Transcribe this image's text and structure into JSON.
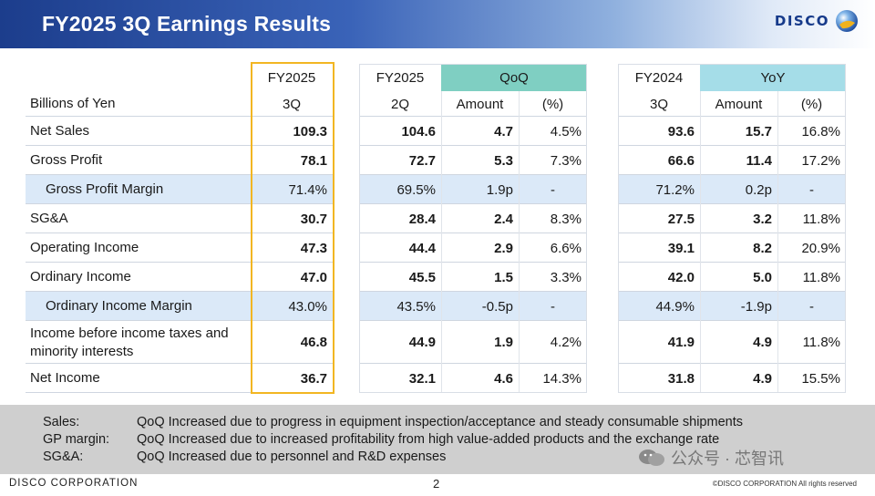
{
  "header": {
    "title": "FY2025 3Q Earnings Results",
    "logo_text": "DISCO"
  },
  "table": {
    "unit_label": "Billions of Yen",
    "current": {
      "line1": "FY2025",
      "line2": "3Q"
    },
    "prev_q": {
      "line1": "FY2025",
      "line2": "2Q"
    },
    "qoq": {
      "title": "QoQ",
      "amount": "Amount",
      "pct": "(%)"
    },
    "prev_y": {
      "line1": "FY2024",
      "line2": "3Q"
    },
    "yoy": {
      "title": "YoY",
      "amount": "Amount",
      "pct": "(%)"
    },
    "rows": [
      {
        "label": "Net Sales",
        "cur": "109.3",
        "q2": "104.6",
        "qoq_amt": "4.7",
        "qoq_pct": "4.5%",
        "py": "93.6",
        "yoy_amt": "15.7",
        "yoy_pct": "16.8%"
      },
      {
        "label": "Gross Profit",
        "cur": "78.1",
        "q2": "72.7",
        "qoq_amt": "5.3",
        "qoq_pct": "7.3%",
        "py": "66.6",
        "yoy_amt": "11.4",
        "yoy_pct": "17.2%"
      },
      {
        "label": "Gross Profit Margin",
        "cur": "71.4%",
        "q2": "69.5%",
        "qoq_amt": "1.9p",
        "qoq_pct": "-",
        "py": "71.2%",
        "yoy_amt": "0.2p",
        "yoy_pct": "-"
      },
      {
        "label": "SG&A",
        "cur": "30.7",
        "q2": "28.4",
        "qoq_amt": "2.4",
        "qoq_pct": "8.3%",
        "py": "27.5",
        "yoy_amt": "3.2",
        "yoy_pct": "11.8%"
      },
      {
        "label": "Operating Income",
        "cur": "47.3",
        "q2": "44.4",
        "qoq_amt": "2.9",
        "qoq_pct": "6.6%",
        "py": "39.1",
        "yoy_amt": "8.2",
        "yoy_pct": "20.9%"
      },
      {
        "label": "Ordinary Income",
        "cur": "47.0",
        "q2": "45.5",
        "qoq_amt": "1.5",
        "qoq_pct": "3.3%",
        "py": "42.0",
        "yoy_amt": "5.0",
        "yoy_pct": "11.8%"
      },
      {
        "label": "Ordinary Income Margin",
        "cur": "43.0%",
        "q2": "43.5%",
        "qoq_amt": "-0.5p",
        "qoq_pct": "-",
        "py": "44.9%",
        "yoy_amt": "-1.9p",
        "yoy_pct": "-"
      },
      {
        "label": "Income before income taxes and minority interests",
        "cur": "46.8",
        "q2": "44.9",
        "qoq_amt": "1.9",
        "qoq_pct": "4.2%",
        "py": "41.9",
        "yoy_amt": "4.9",
        "yoy_pct": "11.8%"
      },
      {
        "label": "Net Income",
        "cur": "36.7",
        "q2": "32.1",
        "qoq_amt": "4.6",
        "qoq_pct": "14.3%",
        "py": "31.8",
        "yoy_amt": "4.9",
        "yoy_pct": "15.5%"
      }
    ]
  },
  "notes": [
    {
      "key": "Sales:",
      "text": "QoQ Increased due to progress in equipment inspection/acceptance and steady consumable shipments"
    },
    {
      "key": "GP margin:",
      "text": "QoQ Increased due to increased profitability from high value-added products and the exchange rate"
    },
    {
      "key": "SG&A:",
      "text": "QoQ Increased due to personnel and R&D expenses"
    }
  ],
  "footer": {
    "company": "DISCO CORPORATION",
    "page": "2",
    "copyright": "©DISCO CORPORATION  All rights reserved"
  },
  "watermark": {
    "text": "公众号 · 芯智讯"
  }
}
